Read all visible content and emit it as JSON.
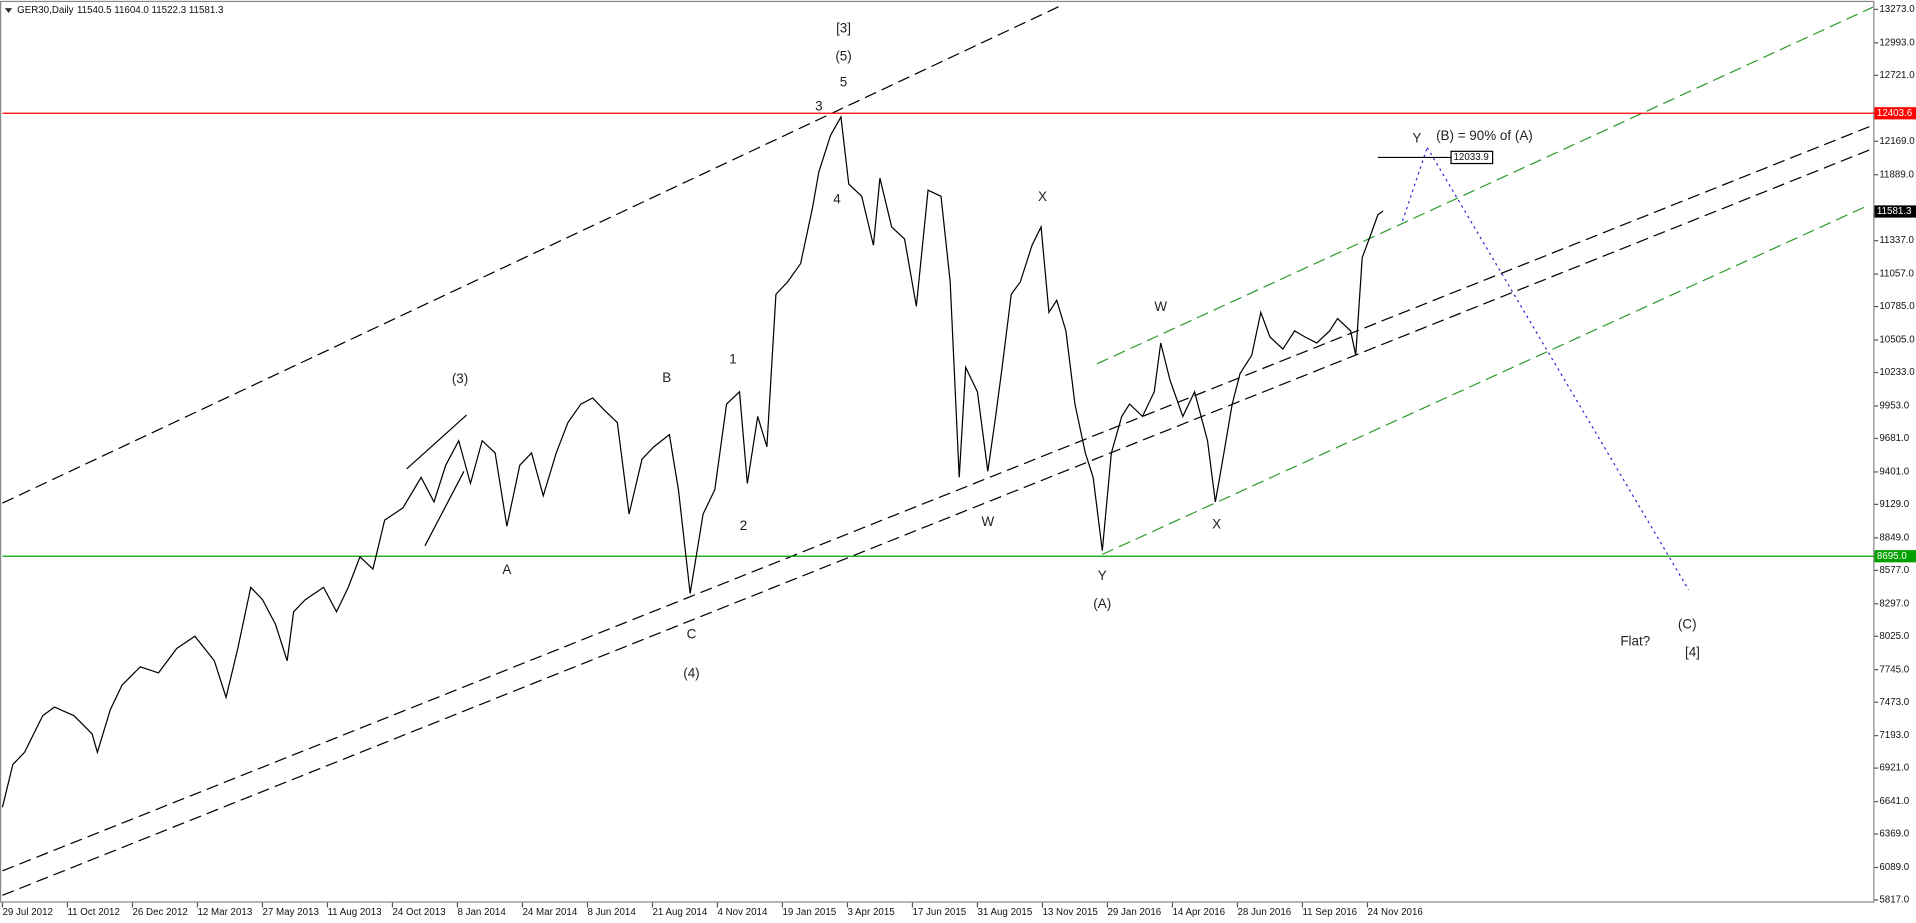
{
  "chart_data": {
    "type": "line",
    "title": "GER30,Daily",
    "subtitle": "11540.5 11604.0 11522.3 11581.3",
    "xlim": [
      0,
      1440
    ],
    "ylim": [
      5795,
      13345
    ],
    "xticks": [
      {
        "value": 0,
        "label": "29 Jul 2012"
      },
      {
        "value": 50,
        "label": "11 Oct 2012"
      },
      {
        "value": 100,
        "label": "26 Dec 2012"
      },
      {
        "value": 150,
        "label": "12 Mar 2013"
      },
      {
        "value": 200,
        "label": "27 May 2013"
      },
      {
        "value": 250,
        "label": "11 Aug 2013"
      },
      {
        "value": 300,
        "label": "24 Oct 2013"
      },
      {
        "value": 350,
        "label": "8 Jan 2014"
      },
      {
        "value": 400,
        "label": "24 Mar 2014"
      },
      {
        "value": 450,
        "label": "8 Jun 2014"
      },
      {
        "value": 500,
        "label": "21 Aug 2014"
      },
      {
        "value": 550,
        "label": "4 Nov 2014"
      },
      {
        "value": 600,
        "label": "19 Jan 2015"
      },
      {
        "value": 650,
        "label": "3 Apr 2015"
      },
      {
        "value": 700,
        "label": "17 Jun 2015"
      },
      {
        "value": 750,
        "label": "31 Aug 2015"
      },
      {
        "value": 800,
        "label": "13 Nov 2015"
      },
      {
        "value": 850,
        "label": "29 Jan 2016"
      },
      {
        "value": 900,
        "label": "14 Apr 2016"
      },
      {
        "value": 950,
        "label": "28 Jun 2016"
      },
      {
        "value": 1000,
        "label": "11 Sep 2016"
      },
      {
        "value": 1050,
        "label": "24 Nov 2016"
      }
    ],
    "yticks": [
      {
        "value": 13273,
        "label": "13273.0"
      },
      {
        "value": 12993,
        "label": "12993.0"
      },
      {
        "value": 12721,
        "label": "12721.0"
      },
      {
        "value": 12169,
        "label": "12169.0"
      },
      {
        "value": 11889,
        "label": "11889.0"
      },
      {
        "value": 11337,
        "label": "11337.0"
      },
      {
        "value": 11057,
        "label": "11057.0"
      },
      {
        "value": 10785,
        "label": "10785.0"
      },
      {
        "value": 10505,
        "label": "10505.0"
      },
      {
        "value": 10233,
        "label": "10233.0"
      },
      {
        "value": 9953,
        "label": "9953.0"
      },
      {
        "value": 9681,
        "label": "9681.0"
      },
      {
        "value": 9401,
        "label": "9401.0"
      },
      {
        "value": 9129,
        "label": "9129.0"
      },
      {
        "value": 8849,
        "label": "8849.0"
      },
      {
        "value": 8577,
        "label": "8577.0"
      },
      {
        "value": 8297,
        "label": "8297.0"
      },
      {
        "value": 8025,
        "label": "8025.0"
      },
      {
        "value": 7745,
        "label": "7745.0"
      },
      {
        "value": 7473,
        "label": "7473.0"
      },
      {
        "value": 7193,
        "label": "7193.0"
      },
      {
        "value": 6921,
        "label": "6921.0"
      },
      {
        "value": 6641,
        "label": "6641.0"
      },
      {
        "value": 6369,
        "label": "6369.0"
      },
      {
        "value": 6089,
        "label": "6089.0"
      },
      {
        "value": 5817,
        "label": "5817.0"
      }
    ],
    "series": [
      {
        "color": "#000000",
        "x": [
          0,
          8,
          17,
          31,
          40,
          55,
          69,
          73,
          83,
          92,
          106,
          120,
          134,
          148,
          163,
          172,
          181,
          191,
          200,
          210,
          219,
          224,
          233,
          247,
          257,
          266,
          275,
          285,
          294,
          308,
          322,
          332,
          341,
          351,
          360,
          369,
          379,
          388,
          398,
          407,
          416,
          426,
          435,
          445,
          454,
          463,
          473,
          482,
          492,
          501,
          513,
          520,
          529,
          539,
          548,
          557,
          567,
          573,
          581,
          588,
          595,
          604,
          614,
          623,
          628,
          637,
          645,
          651,
          661,
          670,
          675,
          684,
          694,
          703,
          712,
          722,
          729,
          736,
          741,
          750,
          758,
          764,
          769,
          776,
          783,
          792,
          799,
          805,
          811,
          818,
          825,
          833,
          839,
          846,
          853,
          861,
          867,
          877,
          886,
          891,
          898,
          908,
          917,
          927,
          933,
          938,
          946,
          952,
          961,
          968,
          975,
          985,
          994,
          1002,
          1011,
          1021,
          1027,
          1037,
          1041,
          1046,
          1053,
          1058,
          1062
        ],
        "values": [
          6593,
          6951,
          7053,
          7360,
          7432,
          7360,
          7207,
          7053,
          7411,
          7616,
          7769,
          7718,
          7923,
          8025,
          7820,
          7514,
          7923,
          8434,
          8332,
          8127,
          7820,
          8230,
          8332,
          8434,
          8230,
          8434,
          8690,
          8588,
          8997,
          9099,
          9355,
          9150,
          9457,
          9662,
          9304,
          9662,
          9560,
          8946,
          9457,
          9560,
          9201,
          9560,
          9815,
          9969,
          10020,
          9918,
          9815,
          9048,
          9508,
          9611,
          9713,
          9253,
          8383,
          9048,
          9253,
          9969,
          10071,
          9304,
          9866,
          9611,
          10889,
          10992,
          11145,
          11605,
          11912,
          12219,
          12373,
          11810,
          11708,
          11299,
          11861,
          11452,
          11350,
          10787,
          11759,
          11708,
          10992,
          9355,
          10276,
          10071,
          9406,
          9866,
          10276,
          10889,
          10992,
          11299,
          11452,
          10736,
          10838,
          10582,
          9969,
          9560,
          9355,
          8741,
          9560,
          9866,
          9969,
          9866,
          10071,
          10480,
          10173,
          9866,
          10071,
          9662,
          9150,
          9457,
          9969,
          10224,
          10378,
          10736,
          10531,
          10429,
          10582,
          10531,
          10480,
          10582,
          10685,
          10582,
          10378,
          11196,
          11401,
          11554,
          11585
        ]
      }
    ],
    "hlines": [
      {
        "value": 12403.6,
        "label": "12403.6",
        "color": "#ff0000"
      },
      {
        "value": 8695.0,
        "label": "8695.0",
        "color": "#00a000"
      }
    ],
    "price_marker": {
      "value": 11581.3,
      "label": "11581.3",
      "color": "#000000"
    },
    "target": {
      "value": 12033.9,
      "label": "12033.9",
      "x1": 1058,
      "x2": 1135,
      "color": "#000000"
    },
    "lines": [
      {
        "x1": 0,
        "y1": 9140,
        "x2": 816,
        "y2": 13314,
        "color": "#000000",
        "dash": "dashed"
      },
      {
        "x1": 0,
        "y1": 6061,
        "x2": 1436,
        "y2": 12291,
        "color": "#000000",
        "dash": "dashed"
      },
      {
        "x1": 0,
        "y1": 5856,
        "x2": 1436,
        "y2": 12096,
        "color": "#000000",
        "dash": "dashed"
      },
      {
        "x1": 842,
        "y1": 10306,
        "x2": 1439,
        "y2": 13293,
        "color": "#2e9b2e",
        "dash": "dashed"
      },
      {
        "x1": 846,
        "y1": 8710,
        "x2": 1436,
        "y2": 11636,
        "color": "#2e9b2e",
        "dash": "dashed"
      },
      {
        "x1": 311,
        "y1": 9427,
        "x2": 357,
        "y2": 9877,
        "color": "#000000",
        "dash": "solid"
      },
      {
        "x1": 325,
        "y1": 8782,
        "x2": 355,
        "y2": 9406,
        "color": "#000000",
        "dash": "solid"
      },
      {
        "x1": 1077,
        "y1": 11503,
        "x2": 1096,
        "y2": 12117,
        "color": "#2b2bd6",
        "dash": "dotted"
      },
      {
        "x1": 1096,
        "y1": 12117,
        "x2": 1297,
        "y2": 8414,
        "color": "#2b2bd6",
        "dash": "dotted"
      }
    ],
    "annotations": [
      {
        "text": "[3]",
        "x": 647,
        "y": 13109
      },
      {
        "text": "(5)",
        "x": 647,
        "y": 12874
      },
      {
        "text": "5",
        "x": 647,
        "y": 12659
      },
      {
        "text": "3",
        "x": 628,
        "y": 12455
      },
      {
        "text": "4",
        "x": 642,
        "y": 11677
      },
      {
        "text": "1",
        "x": 562,
        "y": 10337
      },
      {
        "text": "2",
        "x": 570,
        "y": 8946
      },
      {
        "text": "B",
        "x": 511,
        "y": 10184
      },
      {
        "text": "(3)",
        "x": 352,
        "y": 10173
      },
      {
        "text": "A",
        "x": 388,
        "y": 8578
      },
      {
        "text": "C",
        "x": 530,
        "y": 8035
      },
      {
        "text": "(4)",
        "x": 530,
        "y": 7708
      },
      {
        "text": "W",
        "x": 758,
        "y": 8977
      },
      {
        "text": "X",
        "x": 800,
        "y": 11698
      },
      {
        "text": "Y",
        "x": 846,
        "y": 8526
      },
      {
        "text": "(A)",
        "x": 846,
        "y": 8291
      },
      {
        "text": "W",
        "x": 891,
        "y": 10777
      },
      {
        "text": "X",
        "x": 934,
        "y": 8956
      },
      {
        "text": "Y",
        "x": 1088,
        "y": 12189
      },
      {
        "text": "(B) = 90% of (A)",
        "x": 1140,
        "y": 12209
      },
      {
        "text": "Flat?",
        "x": 1256,
        "y": 7976
      },
      {
        "text": "(C)",
        "x": 1296,
        "y": 8119
      },
      {
        "text": "[4]",
        "x": 1300,
        "y": 7884
      }
    ]
  }
}
